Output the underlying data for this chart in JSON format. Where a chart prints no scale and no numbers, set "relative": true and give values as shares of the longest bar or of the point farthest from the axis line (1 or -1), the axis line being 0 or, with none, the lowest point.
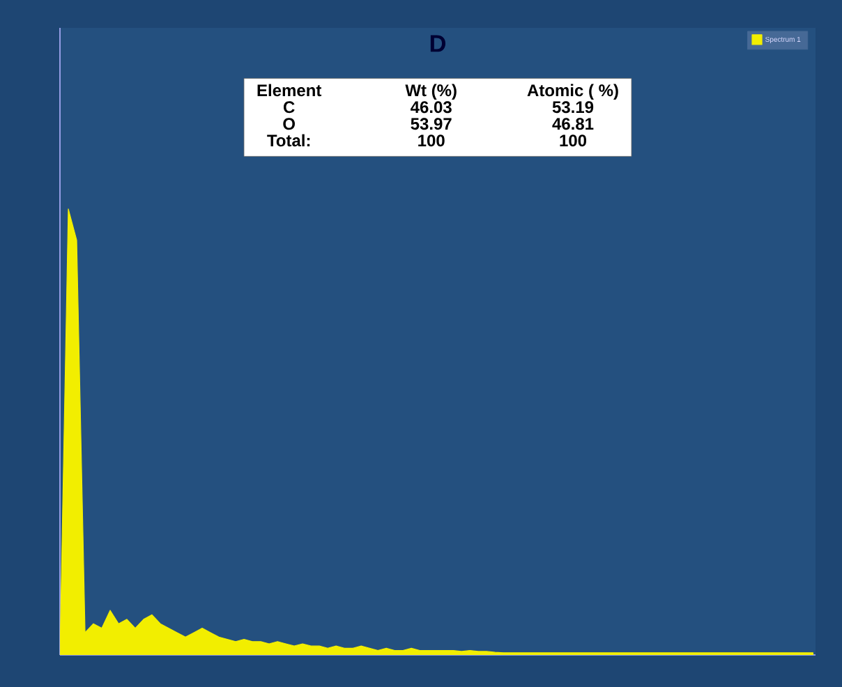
{
  "chart_data": {
    "type": "area",
    "title": "D",
    "relative": true,
    "legend": "top right",
    "annotations": [
      "Element",
      "Wt (%)",
      "Atomic ( %)",
      "C",
      "46.03",
      "53.19",
      "O",
      "53.97",
      "46.81",
      "Total:",
      "100",
      "100"
    ],
    "categories": [
      null,
      null,
      null,
      null,
      null,
      null,
      null,
      null,
      null,
      null,
      null,
      null,
      null,
      null,
      null,
      null,
      null,
      null,
      null,
      null,
      null,
      null,
      null,
      null,
      null,
      null,
      null,
      null,
      null,
      null,
      null,
      null,
      null,
      null,
      null,
      null,
      null,
      null,
      null,
      null,
      null,
      null,
      null,
      null,
      null,
      null,
      null,
      null,
      null,
      null,
      null,
      null,
      null,
      null,
      null,
      null,
      null,
      null,
      null,
      null,
      null,
      null,
      null,
      null,
      null,
      null,
      null,
      null,
      null,
      null,
      null,
      null,
      null,
      null,
      null,
      null,
      null,
      null,
      null,
      null,
      null,
      null,
      null,
      null,
      null,
      null,
      null,
      null,
      null,
      null,
      null
    ],
    "series": [
      {
        "name": "Spectrum 1",
        "color": "#f2ee00",
        "values": [
          0,
          1,
          0.93,
          0.05,
          0.07,
          0.06,
          0.1,
          0.07,
          0.08,
          0.06,
          0.08,
          0.09,
          0.07,
          0.06,
          0.05,
          0.04,
          0.05,
          0.06,
          0.05,
          0.04,
          0.035,
          0.03,
          0.035,
          0.03,
          0.03,
          0.025,
          0.03,
          0.025,
          0.02,
          0.025,
          0.02,
          0.02,
          0.015,
          0.02,
          0.015,
          0.015,
          0.02,
          0.015,
          0.01,
          0.015,
          0.01,
          0.01,
          0.015,
          0.01,
          0.01,
          0.01,
          0.01,
          0.01,
          0.008,
          0.01,
          0.008,
          0.008,
          0.006,
          0.005,
          0.005,
          0.005,
          0.005,
          0.005,
          0.005,
          0.005,
          0.005,
          0.005,
          0.005,
          0.005,
          0.005,
          0.005,
          0.005,
          0.005,
          0.005,
          0.005,
          0.005,
          0.005,
          0.005,
          0.005,
          0.005,
          0.005,
          0.005,
          0.005,
          0.005,
          0.005,
          0.005,
          0.005,
          0.005,
          0.005,
          0.005,
          0.005,
          0.005,
          0.005,
          0.005,
          0.005,
          0.005
        ]
      }
    ]
  }
}
